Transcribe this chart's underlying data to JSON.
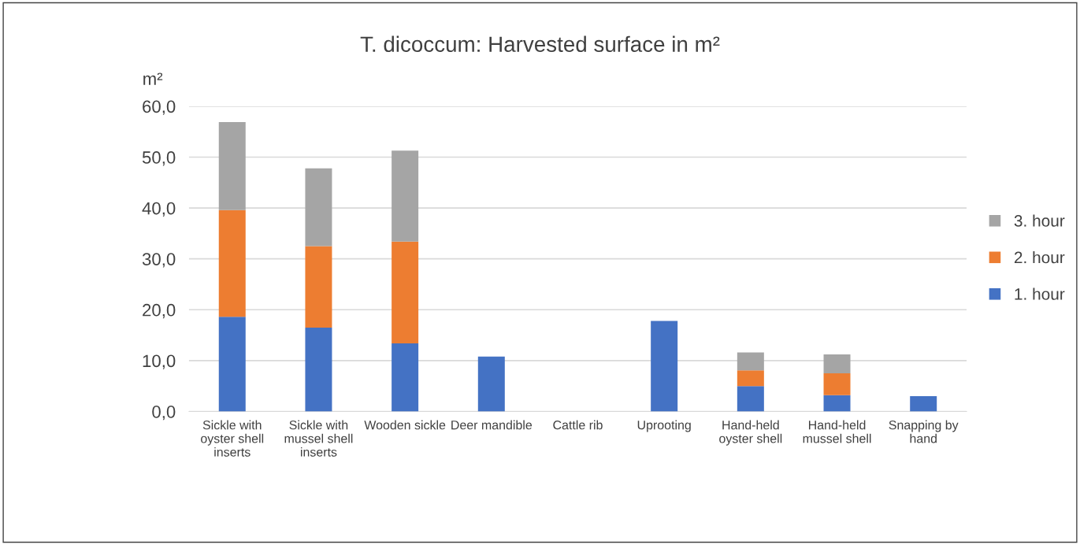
{
  "chart_data": {
    "type": "bar",
    "stacked": true,
    "title": "T. dicoccum: Harvested surface in m²",
    "ylabel": "m²",
    "categories": [
      "Sickle with oyster shell inserts",
      "Sickle with mussel shell inserts",
      "Wooden sickle",
      "Deer mandible",
      "Cattle rib",
      "Uprooting",
      "Hand-held oyster shell",
      "Hand-held mussel shell",
      "Snapping by hand"
    ],
    "series": [
      {
        "name": "1. hour",
        "color": "#4472c4",
        "values": [
          18.6,
          16.5,
          13.4,
          10.8,
          0,
          17.8,
          5.0,
          3.2,
          3.0
        ]
      },
      {
        "name": "2. hour",
        "color": "#ed7d31",
        "values": [
          21.0,
          16.0,
          20.0,
          null,
          null,
          null,
          3.1,
          4.3,
          null
        ]
      },
      {
        "name": "3. hour",
        "color": "#a5a5a5",
        "values": [
          17.3,
          15.3,
          17.9,
          null,
          null,
          null,
          3.5,
          3.7,
          null
        ]
      }
    ],
    "ylim": [
      0,
      60
    ],
    "yticks": [
      {
        "value": 0,
        "label": "0,0"
      },
      {
        "value": 10,
        "label": "10,0"
      },
      {
        "value": 20,
        "label": "20,0"
      },
      {
        "value": 30,
        "label": "30,0"
      },
      {
        "value": 40,
        "label": "40,0"
      },
      {
        "value": 50,
        "label": "50,0"
      },
      {
        "value": 60,
        "label": "60,0"
      }
    ],
    "grid": "y",
    "legend": "right"
  }
}
